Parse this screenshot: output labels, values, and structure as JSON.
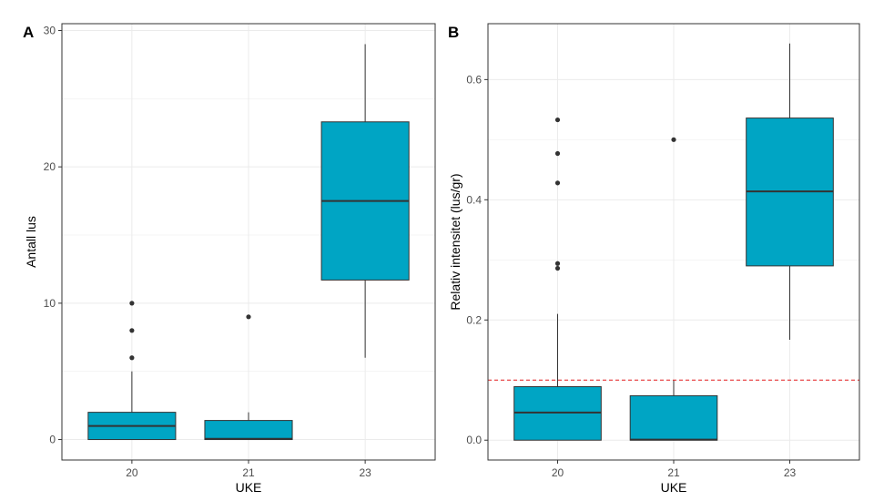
{
  "colors": {
    "box_fill": "#00a5c4",
    "stroke": "#333333",
    "grid": "#ebebeb",
    "threshold": "#e41a1c"
  },
  "chart_data": [
    {
      "type": "box",
      "panel": "A",
      "xlabel": "UKE",
      "ylabel": "Antall lus",
      "ylim": [
        -1.5,
        30.5
      ],
      "yticks": [
        0,
        10,
        20,
        30
      ],
      "grid": true,
      "categories": [
        "20",
        "21",
        "23"
      ],
      "boxes": [
        {
          "category": "20",
          "lower_whisker": 0,
          "q1": 0,
          "median": 1,
          "q3": 2,
          "upper_whisker": 5,
          "outliers": [
            6,
            8,
            10
          ]
        },
        {
          "category": "21",
          "lower_whisker": 0,
          "q1": 0,
          "median": 0.05,
          "q3": 1.4,
          "upper_whisker": 2,
          "outliers": [
            9
          ]
        },
        {
          "category": "23",
          "lower_whisker": 6,
          "q1": 11.7,
          "median": 17.5,
          "q3": 23.3,
          "upper_whisker": 29,
          "outliers": []
        }
      ]
    },
    {
      "type": "box",
      "panel": "B",
      "xlabel": "UKE",
      "ylabel": "Relativ intensitet (lus/gr)",
      "ylim": [
        -0.033,
        0.693
      ],
      "yticks": [
        0.0,
        0.2,
        0.4,
        0.6
      ],
      "grid": true,
      "reference_line": 0.1,
      "categories": [
        "20",
        "21",
        "23"
      ],
      "boxes": [
        {
          "category": "20",
          "lower_whisker": 0,
          "q1": 0,
          "median": 0.046,
          "q3": 0.089,
          "upper_whisker": 0.21,
          "outliers": [
            0.286,
            0.294,
            0.428,
            0.477,
            0.533
          ]
        },
        {
          "category": "21",
          "lower_whisker": 0,
          "q1": 0,
          "median": 0.001,
          "q3": 0.074,
          "upper_whisker": 0.1,
          "outliers": [
            0.5
          ]
        },
        {
          "category": "23",
          "lower_whisker": 0.167,
          "q1": 0.29,
          "median": 0.414,
          "q3": 0.536,
          "upper_whisker": 0.66,
          "outliers": []
        }
      ]
    }
  ]
}
